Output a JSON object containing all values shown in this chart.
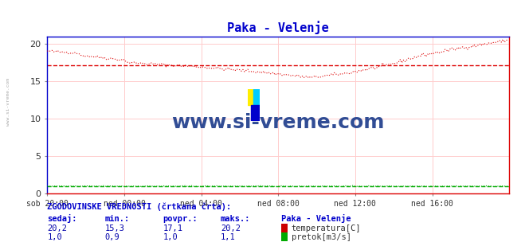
{
  "title": "Paka - Velenje",
  "title_color": "#0000cc",
  "bg_color": "#ffffff",
  "plot_bg_color": "#ffffff",
  "grid_color": "#ffcccc",
  "border_color": "#0000cc",
  "xlabel_ticks": [
    "sob 20:00",
    "ned 00:00",
    "ned 04:00",
    "ned 08:00",
    "ned 12:00",
    "ned 16:00"
  ],
  "yticks": [
    0,
    5,
    10,
    15,
    20
  ],
  "ylim": [
    0,
    21
  ],
  "xlim": [
    0,
    288
  ],
  "temp_color": "#dd0000",
  "pretok_color": "#00aa00",
  "watermark_text": "www.si-vreme.com",
  "watermark_color": "#1a3a8a",
  "sidebar_text": "www.si-vreme.com",
  "sidebar_color": "#aaaaaa",
  "stats_title": "ZGODOVINSKE VREDNOSTI (črtkana črta):",
  "stats_headers": [
    "sedaj:",
    "min.:",
    "povpr.:",
    "maks.:"
  ],
  "stats_label": "Paka - Velenje",
  "temp_stats": [
    "20,2",
    "15,3",
    "17,1",
    "20,2"
  ],
  "pretok_stats": [
    "1,0",
    "0,9",
    "1,0",
    "1,1"
  ],
  "temp_label": "temperatura[C]",
  "pretok_label": "pretok[m3/s]",
  "temp_avg": 17.1,
  "pretok_avg": 1.0,
  "figsize": [
    6.59,
    3.04
  ],
  "dpi": 100
}
